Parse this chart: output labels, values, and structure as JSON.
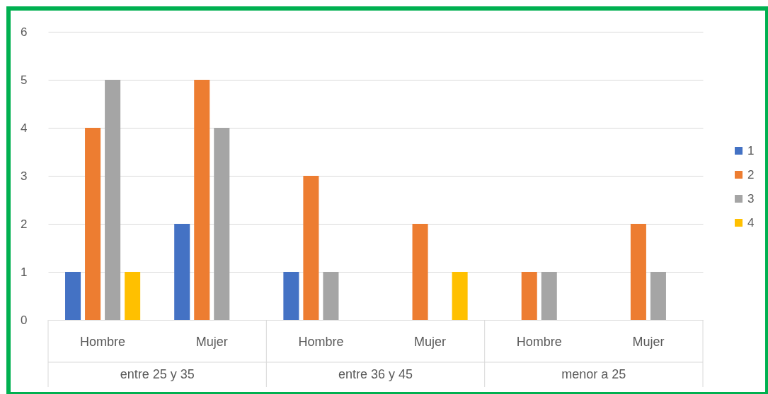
{
  "chart_data": {
    "type": "bar",
    "categories": [
      "Hombre",
      "Mujer",
      "Hombre",
      "Mujer",
      "Hombre",
      "Mujer"
    ],
    "annotations": [
      "entre 25 y 35",
      "entre 36 y 45",
      "menor a 25"
    ],
    "series": [
      {
        "name": "1",
        "color": "#4472c4",
        "values": [
          1,
          2,
          1,
          null,
          null,
          null
        ]
      },
      {
        "name": "2",
        "color": "#ed7d31",
        "values": [
          4,
          5,
          3,
          2,
          1,
          2
        ]
      },
      {
        "name": "3",
        "color": "#a5a5a5",
        "values": [
          5,
          4,
          1,
          null,
          1,
          1
        ]
      },
      {
        "name": "4",
        "color": "#ffc000",
        "values": [
          1,
          null,
          null,
          1,
          null,
          null
        ]
      }
    ],
    "ylim": [
      0,
      6
    ],
    "yticks": [
      0,
      1,
      2,
      3,
      4,
      5,
      6
    ],
    "grid": "y",
    "legend": "right"
  }
}
